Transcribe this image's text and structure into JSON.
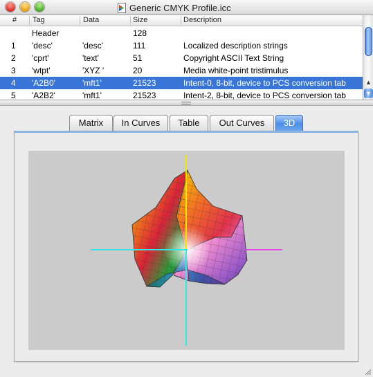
{
  "window": {
    "title": "Generic CMYK Profile.icc",
    "icon": "color-profile-document-icon"
  },
  "table": {
    "columns": [
      "#",
      "Tag",
      "Data",
      "Size",
      "Description"
    ],
    "rows": [
      {
        "num": "",
        "tag": "Header",
        "data": "",
        "size": "128",
        "desc": ""
      },
      {
        "num": "1",
        "tag": "'desc'",
        "data": "'desc'",
        "size": "111",
        "desc": "Localized description strings"
      },
      {
        "num": "2",
        "tag": "'cprt'",
        "data": "'text'",
        "size": "51",
        "desc": "Copyright ASCII Text String"
      },
      {
        "num": "3",
        "tag": "'wtpt'",
        "data": "'XYZ '",
        "size": "20",
        "desc": "Media white-point tristimulus"
      },
      {
        "num": "4",
        "tag": "'A2B0'",
        "data": "'mft1'",
        "size": "21523",
        "desc": "Intent-0, 8-bit, device to PCS conversion tab"
      },
      {
        "num": "5",
        "tag": "'A2B2'",
        "data": "'mft1'",
        "size": "21523",
        "desc": "Intent-2, 8-bit, device to PCS conversion tab"
      }
    ],
    "selected_row": 4
  },
  "tabs": {
    "items": [
      "Matrix",
      "In Curves",
      "Table",
      "Out Curves",
      "3D"
    ],
    "active": "3D"
  },
  "colors": {
    "selection": "#3875d7",
    "axis_yellow": "#f5e300",
    "axis_cyan": "#37e5e5",
    "axis_magenta": "#e24ee8",
    "canvas_bg": "#cbcbcb"
  }
}
